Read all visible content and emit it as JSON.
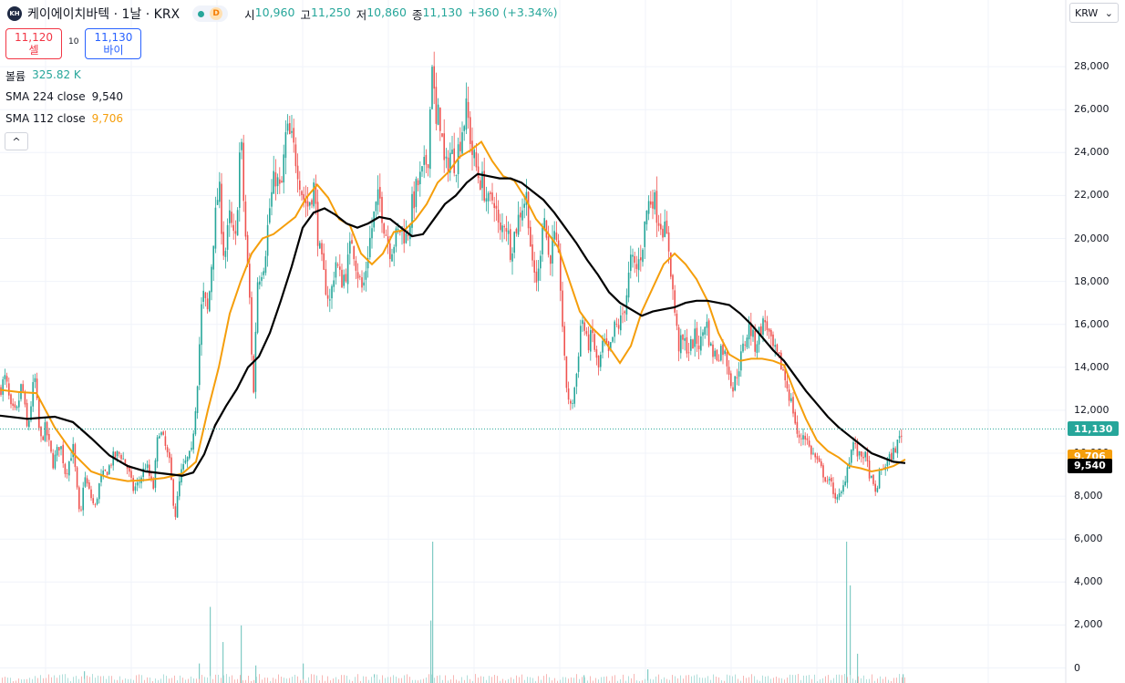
{
  "header": {
    "logo_text": "KH",
    "title": "케이에이치바텍 · 1날 · KRX",
    "interval_badge": "D",
    "ohlc": [
      {
        "label": "시",
        "value": "10,960"
      },
      {
        "label": "고",
        "value": "11,250"
      },
      {
        "label": "저",
        "value": "10,860"
      },
      {
        "label": "종",
        "value": "11,130"
      }
    ],
    "change": "+360 (+3.34%)"
  },
  "trade": {
    "sell_price": "11,120",
    "sell_label": "셀",
    "spread": "10",
    "buy_price": "11,130",
    "buy_label": "바이"
  },
  "legend": {
    "volume_label": "볼륨",
    "volume_value": "325.82 K",
    "sma224_label": "SMA 224 close",
    "sma224_value": "9,540",
    "sma112_label": "SMA 112 close",
    "sma112_value": "9,706",
    "collapse_glyph": "^"
  },
  "currency": {
    "value": "KRW",
    "chevron": "⌄"
  },
  "price_tags": {
    "last": "11,130",
    "sma112": "9,706",
    "sma224": "9,540"
  },
  "colors": {
    "up": "#26a69a",
    "down": "#ef5350",
    "sma112": "#f59e0b",
    "sma224": "#000000",
    "last_price": "#26a69a"
  },
  "chart_data": {
    "type": "candlestick",
    "y_ticks": [
      "28,000",
      "26,000",
      "24,000",
      "22,000",
      "20,000",
      "18,000",
      "16,000",
      "14,000",
      "12,000",
      "10,000",
      "8,000",
      "6,000",
      "4,000",
      "2,000",
      "0"
    ],
    "y_tick_values": [
      28000,
      26000,
      24000,
      22000,
      20000,
      18000,
      16000,
      14000,
      12000,
      10000,
      8000,
      6000,
      4000,
      2000,
      0
    ],
    "last_price": 11130,
    "price_path": [
      [
        0,
        13000
      ],
      [
        6,
        13500
      ],
      [
        12,
        12000
      ],
      [
        18,
        11800
      ],
      [
        24,
        13300
      ],
      [
        30,
        11000
      ],
      [
        38,
        13600
      ],
      [
        44,
        10500
      ],
      [
        50,
        11200
      ],
      [
        58,
        9500
      ],
      [
        66,
        10500
      ],
      [
        72,
        9000
      ],
      [
        80,
        10300
      ],
      [
        88,
        6700
      ],
      [
        92,
        9000
      ],
      [
        98,
        8200
      ],
      [
        104,
        7400
      ],
      [
        110,
        8800
      ],
      [
        118,
        9200
      ],
      [
        124,
        9800
      ],
      [
        132,
        10000
      ],
      [
        140,
        9300
      ],
      [
        146,
        8300
      ],
      [
        152,
        8600
      ],
      [
        160,
        9500
      ],
      [
        168,
        8300
      ],
      [
        174,
        11200
      ],
      [
        180,
        10500
      ],
      [
        186,
        9500
      ],
      [
        192,
        7000
      ],
      [
        198,
        9000
      ],
      [
        204,
        9600
      ],
      [
        210,
        10000
      ],
      [
        216,
        13000
      ],
      [
        222,
        17500
      ],
      [
        228,
        16500
      ],
      [
        234,
        20000
      ],
      [
        240,
        22500
      ],
      [
        246,
        19000
      ],
      [
        252,
        21000
      ],
      [
        258,
        19500
      ],
      [
        264,
        25000
      ],
      [
        268,
        21000
      ],
      [
        274,
        17000
      ],
      [
        278,
        12500
      ],
      [
        282,
        18000
      ],
      [
        290,
        19000
      ],
      [
        296,
        21500
      ],
      [
        302,
        23000
      ],
      [
        308,
        22000
      ],
      [
        314,
        25000
      ],
      [
        320,
        24500
      ],
      [
        326,
        23500
      ],
      [
        332,
        22000
      ],
      [
        338,
        21500
      ],
      [
        344,
        22500
      ],
      [
        350,
        19500
      ],
      [
        356,
        18000
      ],
      [
        362,
        17000
      ],
      [
        368,
        19000
      ],
      [
        374,
        18000
      ],
      [
        380,
        18500
      ],
      [
        386,
        20000
      ],
      [
        392,
        18500
      ],
      [
        398,
        17500
      ],
      [
        404,
        19500
      ],
      [
        410,
        21000
      ],
      [
        416,
        22000
      ],
      [
        422,
        20500
      ],
      [
        428,
        19500
      ],
      [
        434,
        20000
      ],
      [
        440,
        20500
      ],
      [
        446,
        20000
      ],
      [
        452,
        21500
      ],
      [
        458,
        22500
      ],
      [
        464,
        23000
      ],
      [
        470,
        24000
      ],
      [
        474,
        28500
      ],
      [
        478,
        25000
      ],
      [
        482,
        26000
      ],
      [
        488,
        23000
      ],
      [
        494,
        24000
      ],
      [
        500,
        23500
      ],
      [
        506,
        25000
      ],
      [
        512,
        26000
      ],
      [
        518,
        24000
      ],
      [
        524,
        23000
      ],
      [
        530,
        22500
      ],
      [
        536,
        21500
      ],
      [
        542,
        22000
      ],
      [
        548,
        20000
      ],
      [
        554,
        21000
      ],
      [
        560,
        19500
      ],
      [
        566,
        20500
      ],
      [
        572,
        21500
      ],
      [
        578,
        22000
      ],
      [
        584,
        18500
      ],
      [
        590,
        18000
      ],
      [
        596,
        21500
      ],
      [
        602,
        19000
      ],
      [
        608,
        20000
      ],
      [
        614,
        18500
      ],
      [
        620,
        13500
      ],
      [
        626,
        12000
      ],
      [
        632,
        13500
      ],
      [
        638,
        16500
      ],
      [
        644,
        15000
      ],
      [
        650,
        15500
      ],
      [
        656,
        13800
      ],
      [
        662,
        15200
      ],
      [
        668,
        14500
      ],
      [
        674,
        15800
      ],
      [
        680,
        16000
      ],
      [
        686,
        17000
      ],
      [
        692,
        19000
      ],
      [
        698,
        18500
      ],
      [
        704,
        19500
      ],
      [
        710,
        21500
      ],
      [
        716,
        22000
      ],
      [
        722,
        21000
      ],
      [
        728,
        20500
      ],
      [
        734,
        19500
      ],
      [
        738,
        17500
      ],
      [
        744,
        15000
      ],
      [
        750,
        15200
      ],
      [
        756,
        14800
      ],
      [
        762,
        15400
      ],
      [
        768,
        15000
      ],
      [
        774,
        16300
      ],
      [
        780,
        14800
      ],
      [
        786,
        14500
      ],
      [
        792,
        15000
      ],
      [
        798,
        14200
      ],
      [
        804,
        13000
      ],
      [
        810,
        14000
      ],
      [
        816,
        15000
      ],
      [
        822,
        16000
      ],
      [
        828,
        15000
      ],
      [
        834,
        15800
      ],
      [
        840,
        16200
      ],
      [
        846,
        15000
      ],
      [
        852,
        14500
      ],
      [
        858,
        14000
      ],
      [
        864,
        13000
      ],
      [
        870,
        12000
      ],
      [
        876,
        10500
      ],
      [
        882,
        11000
      ],
      [
        888,
        10200
      ],
      [
        894,
        9800
      ],
      [
        900,
        9300
      ],
      [
        906,
        8800
      ],
      [
        912,
        8500
      ],
      [
        918,
        7800
      ],
      [
        924,
        8200
      ],
      [
        930,
        9500
      ],
      [
        936,
        10500
      ],
      [
        942,
        9800
      ],
      [
        948,
        10000
      ],
      [
        954,
        9000
      ],
      [
        960,
        8100
      ],
      [
        966,
        9200
      ],
      [
        972,
        9500
      ],
      [
        978,
        9900
      ],
      [
        984,
        10400
      ],
      [
        990,
        11130
      ]
    ],
    "sma112": [
      [
        0,
        12950
      ],
      [
        20,
        12850
      ],
      [
        40,
        12800
      ],
      [
        60,
        11200
      ],
      [
        80,
        10000
      ],
      [
        100,
        9150
      ],
      [
        120,
        8850
      ],
      [
        140,
        8700
      ],
      [
        160,
        8750
      ],
      [
        180,
        8850
      ],
      [
        200,
        9050
      ],
      [
        215,
        9600
      ],
      [
        228,
        12000
      ],
      [
        240,
        14000
      ],
      [
        252,
        16500
      ],
      [
        264,
        18000
      ],
      [
        276,
        19300
      ],
      [
        288,
        20000
      ],
      [
        300,
        20200
      ],
      [
        312,
        20600
      ],
      [
        324,
        21000
      ],
      [
        336,
        21900
      ],
      [
        348,
        22500
      ],
      [
        360,
        21900
      ],
      [
        372,
        20900
      ],
      [
        384,
        20600
      ],
      [
        396,
        19300
      ],
      [
        408,
        18800
      ],
      [
        420,
        19300
      ],
      [
        432,
        20300
      ],
      [
        444,
        20400
      ],
      [
        456,
        20900
      ],
      [
        468,
        21600
      ],
      [
        480,
        22600
      ],
      [
        492,
        23100
      ],
      [
        504,
        23800
      ],
      [
        516,
        24100
      ],
      [
        528,
        24500
      ],
      [
        540,
        23600
      ],
      [
        552,
        22900
      ],
      [
        564,
        22700
      ],
      [
        576,
        21900
      ],
      [
        588,
        20900
      ],
      [
        600,
        20300
      ],
      [
        612,
        19600
      ],
      [
        624,
        18100
      ],
      [
        636,
        16600
      ],
      [
        648,
        15900
      ],
      [
        660,
        15400
      ],
      [
        672,
        14700
      ],
      [
        680,
        14200
      ],
      [
        692,
        15000
      ],
      [
        704,
        16600
      ],
      [
        716,
        17700
      ],
      [
        728,
        18800
      ],
      [
        740,
        19300
      ],
      [
        752,
        18800
      ],
      [
        764,
        18100
      ],
      [
        776,
        17100
      ],
      [
        788,
        15600
      ],
      [
        800,
        14600
      ],
      [
        812,
        14300
      ],
      [
        824,
        14400
      ],
      [
        836,
        14400
      ],
      [
        848,
        14300
      ],
      [
        860,
        14100
      ],
      [
        872,
        12800
      ],
      [
        884,
        11600
      ],
      [
        896,
        10600
      ],
      [
        908,
        10100
      ],
      [
        920,
        9800
      ],
      [
        932,
        9400
      ],
      [
        944,
        9300
      ],
      [
        956,
        9150
      ],
      [
        968,
        9250
      ],
      [
        980,
        9400
      ],
      [
        993,
        9706
      ]
    ],
    "sma224": [
      [
        0,
        11750
      ],
      [
        30,
        11600
      ],
      [
        60,
        11700
      ],
      [
        80,
        11450
      ],
      [
        100,
        10700
      ],
      [
        120,
        9900
      ],
      [
        140,
        9400
      ],
      [
        160,
        9150
      ],
      [
        180,
        9050
      ],
      [
        200,
        8950
      ],
      [
        212,
        9100
      ],
      [
        224,
        9950
      ],
      [
        236,
        11300
      ],
      [
        248,
        12200
      ],
      [
        260,
        13000
      ],
      [
        272,
        14000
      ],
      [
        284,
        14500
      ],
      [
        296,
        15600
      ],
      [
        308,
        17100
      ],
      [
        320,
        18700
      ],
      [
        332,
        20500
      ],
      [
        344,
        21200
      ],
      [
        356,
        21400
      ],
      [
        368,
        21100
      ],
      [
        380,
        20700
      ],
      [
        392,
        20500
      ],
      [
        404,
        20700
      ],
      [
        416,
        21000
      ],
      [
        428,
        20900
      ],
      [
        440,
        20500
      ],
      [
        452,
        20100
      ],
      [
        464,
        20200
      ],
      [
        476,
        20900
      ],
      [
        488,
        21600
      ],
      [
        500,
        22000
      ],
      [
        512,
        22600
      ],
      [
        524,
        23000
      ],
      [
        536,
        22900
      ],
      [
        548,
        22800
      ],
      [
        560,
        22800
      ],
      [
        572,
        22600
      ],
      [
        584,
        22200
      ],
      [
        596,
        21800
      ],
      [
        608,
        21200
      ],
      [
        620,
        20500
      ],
      [
        632,
        19800
      ],
      [
        644,
        19000
      ],
      [
        656,
        18300
      ],
      [
        668,
        17500
      ],
      [
        680,
        17000
      ],
      [
        692,
        16700
      ],
      [
        704,
        16400
      ],
      [
        716,
        16600
      ],
      [
        728,
        16700
      ],
      [
        740,
        16800
      ],
      [
        752,
        17000
      ],
      [
        764,
        17100
      ],
      [
        776,
        17100
      ],
      [
        788,
        17000
      ],
      [
        800,
        16900
      ],
      [
        812,
        16500
      ],
      [
        824,
        16000
      ],
      [
        836,
        15400
      ],
      [
        848,
        14800
      ],
      [
        860,
        14300
      ],
      [
        872,
        13600
      ],
      [
        884,
        12900
      ],
      [
        896,
        12300
      ],
      [
        908,
        11700
      ],
      [
        920,
        11200
      ],
      [
        932,
        10800
      ],
      [
        944,
        10400
      ],
      [
        956,
        10000
      ],
      [
        968,
        9800
      ],
      [
        980,
        9600
      ],
      [
        993,
        9540
      ]
    ],
    "volume_spikes": [
      [
        92,
        120
      ],
      [
        218,
        200
      ],
      [
        230,
        780
      ],
      [
        244,
        420
      ],
      [
        264,
        590
      ],
      [
        280,
        180
      ],
      [
        332,
        200
      ],
      [
        410,
        90
      ],
      [
        474,
        1450
      ],
      [
        472,
        640
      ],
      [
        640,
        80
      ],
      [
        710,
        140
      ],
      [
        928,
        1450
      ],
      [
        932,
        1000
      ],
      [
        940,
        300
      ],
      [
        990,
        90
      ]
    ],
    "volume_panel_max": 6000
  }
}
